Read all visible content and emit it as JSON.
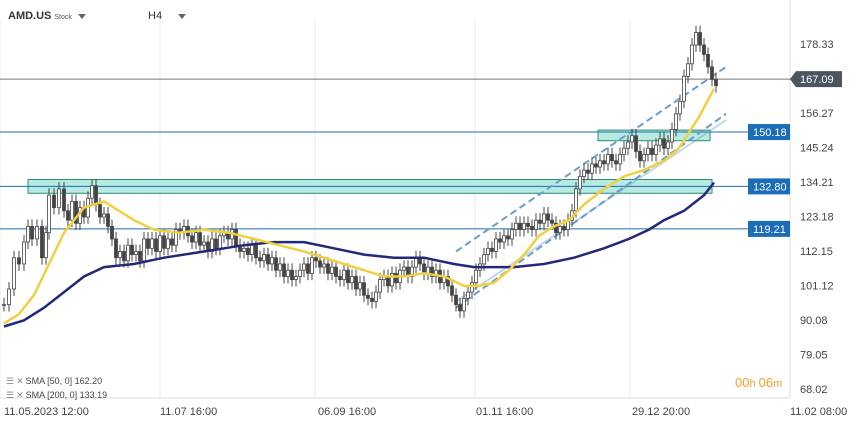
{
  "header": {
    "symbol": "AMD.US",
    "symbol_type": "Stock",
    "timeframe": "H4"
  },
  "legend": [
    {
      "label": "SMA [50,  0]  162.20"
    },
    {
      "label": "SMA [200,  0]  133.19"
    }
  ],
  "timer": {
    "hours": "00",
    "h_unit": "h",
    "minutes": "06",
    "m_unit": "m"
  },
  "colors": {
    "price_line": "#2b6fc2",
    "sma50": "#f0d040",
    "sma200": "#23287a",
    "zone_fill": "#b7eae0",
    "zone_border": "#2a8c7c",
    "badge": "#1b6db8",
    "current_badge": "#4b5560",
    "channel": "#6a9ec9"
  },
  "chart_data": {
    "type": "candlestick",
    "y_ticks": [
      178.33,
      167.2,
      156.27,
      145.24,
      134.21,
      123.18,
      112.15,
      101.12,
      90.08,
      79.05,
      68.02
    ],
    "ylim": [
      68.02,
      178.33
    ],
    "x_tick_labels": [
      "11.05.2023  12:00",
      "11.07  16:00",
      "06.09  16:00",
      "01.11  16:00",
      "29.12  20:00",
      "11.02  08:00"
    ],
    "current_price": 167.09,
    "levels": [
      150.18,
      132.8,
      119.21
    ],
    "zones": [
      {
        "low": 147.4,
        "high": 150.8,
        "level": "150.18"
      },
      {
        "low": 130.6,
        "high": 135.0,
        "level": "132.80"
      }
    ],
    "price_path": [
      [
        0,
        95
      ],
      [
        5,
        100
      ],
      [
        10,
        110
      ],
      [
        15,
        108
      ],
      [
        20,
        115
      ],
      [
        24,
        120
      ],
      [
        28,
        116
      ],
      [
        33,
        120
      ],
      [
        38,
        110
      ],
      [
        42,
        118
      ],
      [
        45,
        130
      ],
      [
        50,
        126
      ],
      [
        55,
        132
      ],
      [
        60,
        125
      ],
      [
        64,
        122
      ],
      [
        68,
        128
      ],
      [
        72,
        121
      ],
      [
        76,
        126
      ],
      [
        80,
        123
      ],
      [
        84,
        129
      ],
      [
        88,
        133
      ],
      [
        92,
        127
      ],
      [
        96,
        123
      ],
      [
        100,
        124
      ],
      [
        104,
        120
      ],
      [
        108,
        116
      ],
      [
        112,
        110
      ],
      [
        116,
        112
      ],
      [
        120,
        109
      ],
      [
        124,
        114
      ],
      [
        128,
        111
      ],
      [
        132,
        112
      ],
      [
        136,
        109
      ],
      [
        140,
        116
      ],
      [
        144,
        113
      ],
      [
        148,
        116
      ],
      [
        152,
        112
      ],
      [
        156,
        117
      ],
      [
        160,
        113
      ],
      [
        164,
        116
      ],
      [
        168,
        114
      ],
      [
        172,
        119
      ],
      [
        176,
        118
      ],
      [
        180,
        120
      ],
      [
        184,
        117
      ],
      [
        188,
        115
      ],
      [
        192,
        118
      ],
      [
        196,
        114
      ],
      [
        200,
        115
      ],
      [
        204,
        112
      ],
      [
        208,
        116
      ],
      [
        212,
        113
      ],
      [
        216,
        117
      ],
      [
        220,
        118
      ],
      [
        224,
        116
      ],
      [
        228,
        119
      ],
      [
        232,
        114
      ],
      [
        236,
        112
      ],
      [
        240,
        113
      ],
      [
        244,
        111
      ],
      [
        248,
        114
      ],
      [
        252,
        110
      ],
      [
        256,
        109
      ],
      [
        260,
        111
      ],
      [
        264,
        108
      ],
      [
        268,
        110
      ],
      [
        272,
        106
      ],
      [
        276,
        108
      ],
      [
        280,
        104
      ],
      [
        284,
        106
      ],
      [
        288,
        103
      ],
      [
        292,
        104
      ],
      [
        296,
        106
      ],
      [
        300,
        108
      ],
      [
        304,
        105
      ],
      [
        308,
        110
      ],
      [
        312,
        109
      ],
      [
        316,
        107
      ],
      [
        320,
        108
      ],
      [
        324,
        105
      ],
      [
        328,
        107
      ],
      [
        332,
        104
      ],
      [
        336,
        103
      ],
      [
        340,
        106
      ],
      [
        344,
        102
      ],
      [
        348,
        104
      ],
      [
        352,
        100
      ],
      [
        356,
        102
      ],
      [
        360,
        98
      ],
      [
        364,
        97
      ],
      [
        368,
        96
      ],
      [
        372,
        99
      ],
      [
        376,
        103
      ],
      [
        380,
        104
      ],
      [
        384,
        101
      ],
      [
        388,
        105
      ],
      [
        392,
        102
      ],
      [
        396,
        106
      ],
      [
        400,
        107
      ],
      [
        404,
        104
      ],
      [
        408,
        107
      ],
      [
        412,
        110
      ],
      [
        416,
        108
      ],
      [
        420,
        105
      ],
      [
        424,
        107
      ],
      [
        428,
        104
      ],
      [
        432,
        106
      ],
      [
        436,
        102
      ],
      [
        440,
        104
      ],
      [
        444,
        101
      ],
      [
        448,
        98
      ],
      [
        452,
        95
      ],
      [
        456,
        93
      ],
      [
        460,
        97
      ],
      [
        464,
        99
      ],
      [
        468,
        102
      ],
      [
        472,
        106
      ],
      [
        476,
        108
      ],
      [
        480,
        111
      ],
      [
        484,
        113
      ],
      [
        488,
        112
      ],
      [
        492,
        116
      ],
      [
        496,
        115
      ],
      [
        500,
        117
      ],
      [
        504,
        116
      ],
      [
        508,
        119
      ],
      [
        512,
        121
      ],
      [
        516,
        119
      ],
      [
        520,
        121
      ],
      [
        524,
        120
      ],
      [
        528,
        119
      ],
      [
        532,
        122
      ],
      [
        536,
        121
      ],
      [
        540,
        124
      ],
      [
        544,
        122
      ],
      [
        548,
        121
      ],
      [
        552,
        118
      ],
      [
        556,
        120
      ],
      [
        560,
        119
      ],
      [
        564,
        122
      ],
      [
        568,
        125
      ],
      [
        572,
        132
      ],
      [
        576,
        136
      ],
      [
        580,
        138
      ],
      [
        584,
        137
      ],
      [
        588,
        140
      ],
      [
        592,
        139
      ],
      [
        596,
        141
      ],
      [
        600,
        140
      ],
      [
        604,
        143
      ],
      [
        608,
        141
      ],
      [
        612,
        140
      ],
      [
        616,
        143
      ],
      [
        620,
        145
      ],
      [
        624,
        147
      ],
      [
        628,
        149
      ],
      [
        632,
        144
      ],
      [
        636,
        141
      ],
      [
        640,
        143
      ],
      [
        644,
        145
      ],
      [
        648,
        143
      ],
      [
        652,
        146
      ],
      [
        656,
        148
      ],
      [
        660,
        145
      ],
      [
        664,
        147
      ],
      [
        668,
        151
      ],
      [
        672,
        156
      ],
      [
        676,
        160
      ],
      [
        680,
        168
      ],
      [
        684,
        172
      ],
      [
        688,
        178
      ],
      [
        692,
        182
      ],
      [
        696,
        178
      ],
      [
        700,
        175
      ],
      [
        704,
        171
      ],
      [
        708,
        167
      ],
      [
        712,
        165
      ]
    ],
    "sma50": [
      [
        0,
        89
      ],
      [
        15,
        92
      ],
      [
        30,
        98
      ],
      [
        45,
        108
      ],
      [
        60,
        118
      ],
      [
        80,
        126
      ],
      [
        100,
        128
      ],
      [
        115,
        125
      ],
      [
        130,
        122
      ],
      [
        150,
        119
      ],
      [
        175,
        118
      ],
      [
        200,
        119
      ],
      [
        225,
        118
      ],
      [
        250,
        116
      ],
      [
        275,
        114
      ],
      [
        300,
        112
      ],
      [
        320,
        110
      ],
      [
        340,
        108
      ],
      [
        360,
        106
      ],
      [
        380,
        104
      ],
      [
        400,
        104
      ],
      [
        420,
        105
      ],
      [
        440,
        104
      ],
      [
        460,
        101
      ],
      [
        475,
        101
      ],
      [
        490,
        102
      ],
      [
        505,
        106
      ],
      [
        520,
        111
      ],
      [
        535,
        117
      ],
      [
        550,
        120
      ],
      [
        565,
        122
      ],
      [
        580,
        127
      ],
      [
        600,
        132
      ],
      [
        620,
        136
      ],
      [
        640,
        138
      ],
      [
        660,
        141
      ],
      [
        675,
        145
      ],
      [
        685,
        150
      ],
      [
        695,
        155
      ],
      [
        705,
        161
      ],
      [
        710,
        164
      ]
    ],
    "sma200": [
      [
        0,
        88
      ],
      [
        20,
        90
      ],
      [
        40,
        94
      ],
      [
        60,
        99
      ],
      [
        80,
        104
      ],
      [
        100,
        107
      ],
      [
        130,
        108
      ],
      [
        160,
        110
      ],
      [
        200,
        112
      ],
      [
        240,
        114
      ],
      [
        270,
        115
      ],
      [
        300,
        115
      ],
      [
        330,
        113
      ],
      [
        360,
        111
      ],
      [
        390,
        110
      ],
      [
        420,
        110
      ],
      [
        450,
        108
      ],
      [
        470,
        107
      ],
      [
        490,
        107
      ],
      [
        510,
        107
      ],
      [
        540,
        108
      ],
      [
        570,
        110
      ],
      [
        600,
        113
      ],
      [
        625,
        116
      ],
      [
        645,
        119
      ],
      [
        660,
        122
      ],
      [
        680,
        125
      ],
      [
        700,
        130
      ],
      [
        710,
        134
      ]
    ],
    "channel": [
      [
        [
          452,
          94
        ],
        [
          722,
          156
        ]
      ],
      [
        [
          452,
          112
        ],
        [
          722,
          171
        ]
      ],
      [
        [
          452,
          96
        ],
        [
          722,
          154
        ]
      ]
    ]
  }
}
